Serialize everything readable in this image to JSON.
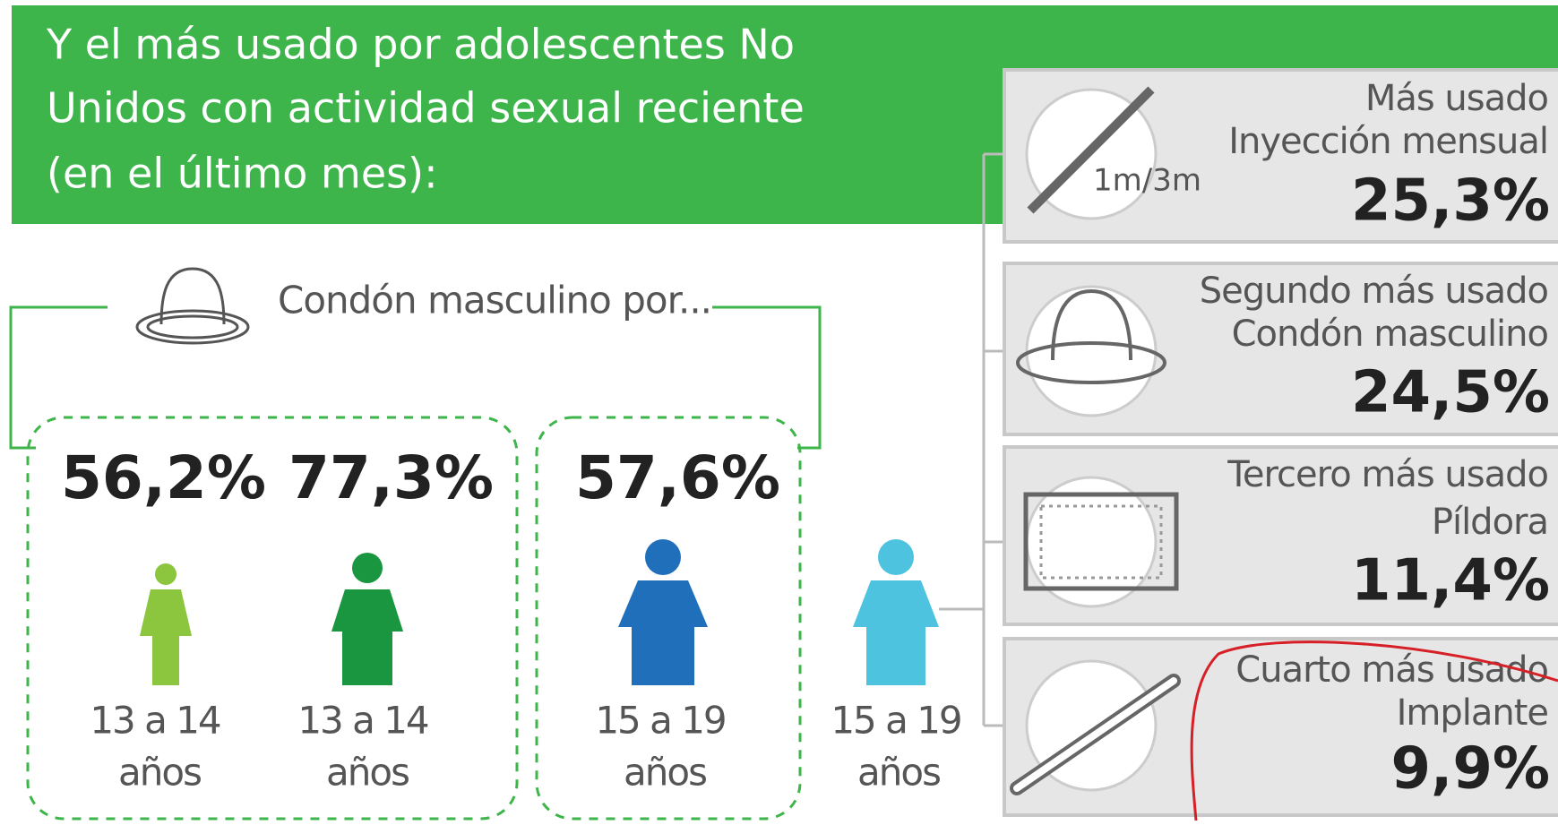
{
  "header": {
    "title_lines": [
      "Y el más usado por adolescentes No",
      "Unidos con actividad sexual reciente",
      "(en el último mes):"
    ]
  },
  "condom_label": "Condón masculino por...",
  "groups": [
    {
      "percent": "56,2%",
      "age_lines": [
        "13 a 14",
        "años"
      ]
    },
    {
      "percent": "77,3%",
      "age_lines": [
        "13 a 14",
        "años"
      ]
    },
    {
      "percent": "57,6%",
      "age_lines": [
        "15 a 19",
        "años"
      ]
    },
    {
      "age_lines": [
        "15 a 19",
        "años"
      ]
    }
  ],
  "cards": [
    {
      "rank": "Más usado",
      "method": "Inyección mensual",
      "percent": "25,3%",
      "icon_text": "1m/3m"
    },
    {
      "rank": "Segundo más usado",
      "method": "Condón masculino",
      "percent": "24,5%"
    },
    {
      "rank": "Tercero más usado",
      "method": "Píldora",
      "percent": "11,4%"
    },
    {
      "rank": "Cuarto más usado",
      "method": "Implante",
      "percent": "9,9%"
    }
  ]
}
